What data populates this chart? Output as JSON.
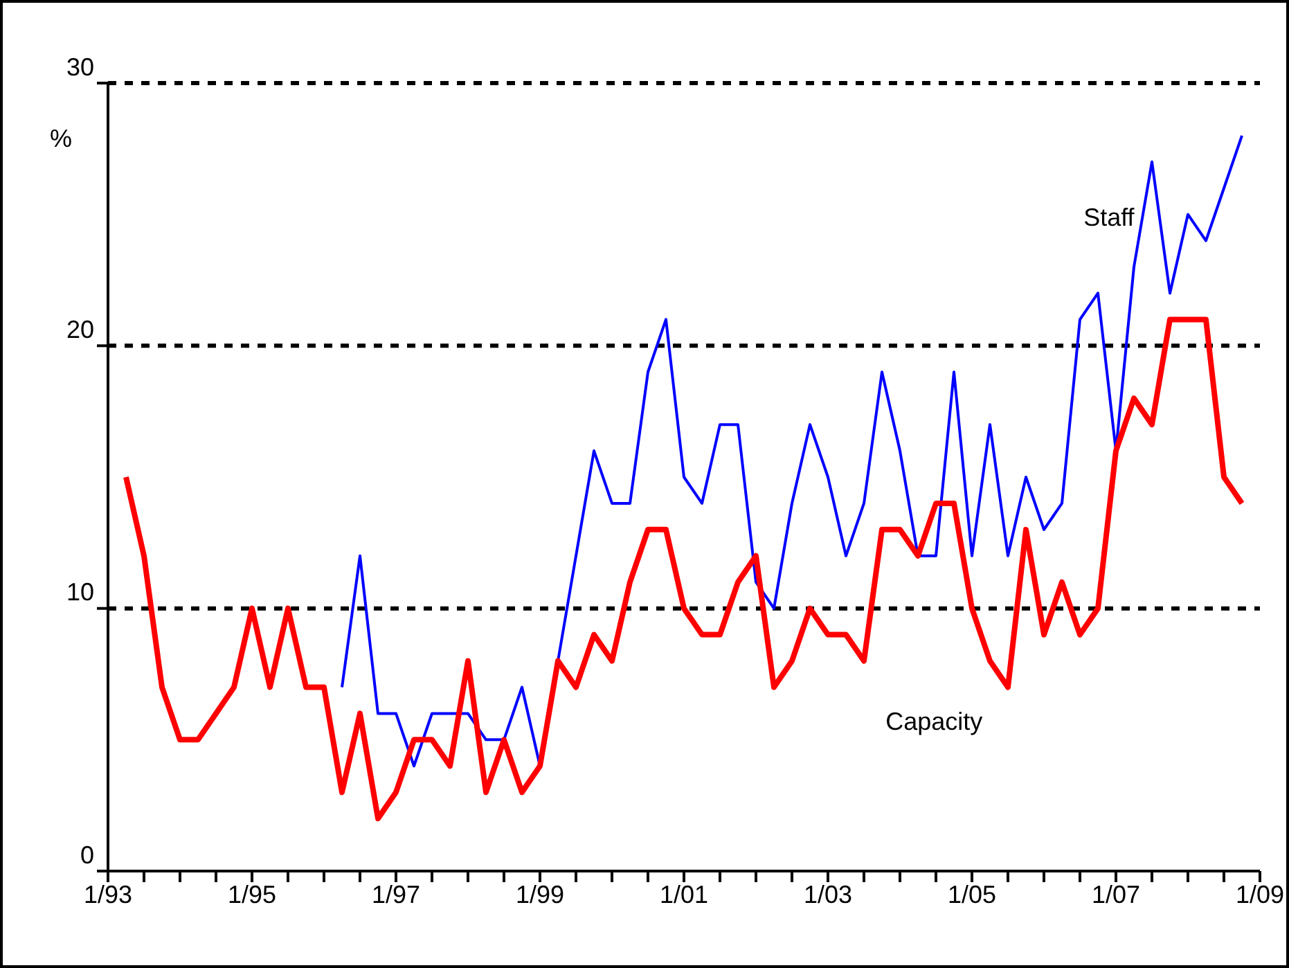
{
  "chart_data": {
    "type": "line",
    "ylabel": "%",
    "x": [
      "1993-04",
      "1993-07",
      "1993-10",
      "1994-01",
      "1994-04",
      "1994-07",
      "1994-10",
      "1995-01",
      "1995-04",
      "1995-07",
      "1995-10",
      "1996-01",
      "1996-04",
      "1996-07",
      "1996-10",
      "1997-01",
      "1997-04",
      "1997-07",
      "1997-10",
      "1998-01",
      "1998-04",
      "1998-07",
      "1998-10",
      "1999-01",
      "1999-04",
      "1999-07",
      "1999-10",
      "2000-01",
      "2000-04",
      "2000-07",
      "2000-10",
      "2001-01",
      "2001-04",
      "2001-07",
      "2001-10",
      "2002-01",
      "2002-04",
      "2002-07",
      "2002-10",
      "2003-01",
      "2003-04",
      "2003-07",
      "2003-10",
      "2004-01",
      "2004-04",
      "2004-07",
      "2004-10",
      "2005-01",
      "2005-04",
      "2005-07",
      "2005-10",
      "2006-01",
      "2006-04",
      "2006-07",
      "2006-10",
      "2007-01",
      "2007-04",
      "2007-07",
      "2007-10",
      "2008-01",
      "2008-04",
      "2008-07",
      "2008-10"
    ],
    "series": [
      {
        "name": "Staff",
        "color": "#0000ff",
        "x": [
          "1996-04",
          "1996-07",
          "1996-10",
          "1997-01",
          "1997-04",
          "1997-07",
          "1997-10",
          "1998-01",
          "1998-04",
          "1998-07",
          "1998-10",
          "1999-01",
          "1999-04",
          "1999-07",
          "1999-10",
          "2000-01",
          "2000-04",
          "2000-07",
          "2000-10",
          "2001-01",
          "2001-04",
          "2001-07",
          "2001-10",
          "2002-01",
          "2002-04",
          "2002-07",
          "2002-10",
          "2003-01",
          "2003-04",
          "2003-07",
          "2003-10",
          "2004-01",
          "2004-04",
          "2004-07",
          "2004-10",
          "2005-01",
          "2005-04",
          "2005-07",
          "2005-10",
          "2006-01",
          "2006-04",
          "2006-07",
          "2006-10",
          "2007-01",
          "2007-04",
          "2007-07",
          "2007-10",
          "2008-01",
          "2008-04",
          "2008-07",
          "2008-10"
        ],
        "values": [
          7,
          12,
          6,
          6,
          4,
          6,
          6,
          6,
          5,
          5,
          7,
          4,
          8,
          12,
          16,
          14,
          14,
          19,
          21,
          15,
          14,
          17,
          17,
          11,
          10,
          14,
          17,
          15,
          12,
          14,
          19,
          16,
          12,
          12,
          19,
          12,
          17,
          12,
          15,
          13,
          14,
          21,
          22,
          16,
          23,
          27,
          22,
          25,
          24,
          26,
          28
        ]
      },
      {
        "name": "Capacity",
        "color": "#ff0000",
        "values": [
          15,
          12,
          7,
          5,
          5,
          6,
          7,
          10,
          7,
          10,
          7,
          7,
          3,
          6,
          2,
          3,
          5,
          5,
          4,
          8,
          3,
          5,
          3,
          4,
          8,
          7,
          9,
          8,
          11,
          13,
          13,
          10,
          9,
          9,
          11,
          12,
          7,
          8,
          10,
          9,
          9,
          8,
          13,
          13,
          12,
          14,
          14,
          10,
          8,
          7,
          13,
          9,
          11,
          9,
          10,
          16,
          18,
          17,
          21,
          21,
          21,
          15,
          14
        ]
      }
    ],
    "xlim": [
      "1993-01",
      "2009-01"
    ],
    "xticks": [
      {
        "value": "1993-01",
        "label": "1/93"
      },
      {
        "value": "1993-07",
        "label": null
      },
      {
        "value": "1994-01",
        "label": null
      },
      {
        "value": "1994-07",
        "label": null
      },
      {
        "value": "1995-01",
        "label": "1/95"
      },
      {
        "value": "1995-07",
        "label": null
      },
      {
        "value": "1996-01",
        "label": null
      },
      {
        "value": "1996-07",
        "label": null
      },
      {
        "value": "1997-01",
        "label": "1/97"
      },
      {
        "value": "1997-07",
        "label": null
      },
      {
        "value": "1998-01",
        "label": null
      },
      {
        "value": "1998-07",
        "label": null
      },
      {
        "value": "1999-01",
        "label": "1/99"
      },
      {
        "value": "1999-07",
        "label": null
      },
      {
        "value": "2000-01",
        "label": null
      },
      {
        "value": "2000-07",
        "label": null
      },
      {
        "value": "2001-01",
        "label": "1/01"
      },
      {
        "value": "2001-07",
        "label": null
      },
      {
        "value": "2002-01",
        "label": null
      },
      {
        "value": "2002-07",
        "label": null
      },
      {
        "value": "2003-01",
        "label": "1/03"
      },
      {
        "value": "2003-07",
        "label": null
      },
      {
        "value": "2004-01",
        "label": null
      },
      {
        "value": "2004-07",
        "label": null
      },
      {
        "value": "2005-01",
        "label": "1/05"
      },
      {
        "value": "2005-07",
        "label": null
      },
      {
        "value": "2006-01",
        "label": null
      },
      {
        "value": "2006-07",
        "label": null
      },
      {
        "value": "2007-01",
        "label": "1/07"
      },
      {
        "value": "2007-07",
        "label": null
      },
      {
        "value": "2008-01",
        "label": null
      },
      {
        "value": "2008-07",
        "label": null
      },
      {
        "value": "2009-01",
        "label": "1/09"
      }
    ],
    "ylim": [
      0,
      30
    ],
    "yticks": [
      0,
      10,
      20,
      30
    ],
    "grid": "y",
    "legend": false,
    "marker": "none",
    "line_style": "solid"
  }
}
